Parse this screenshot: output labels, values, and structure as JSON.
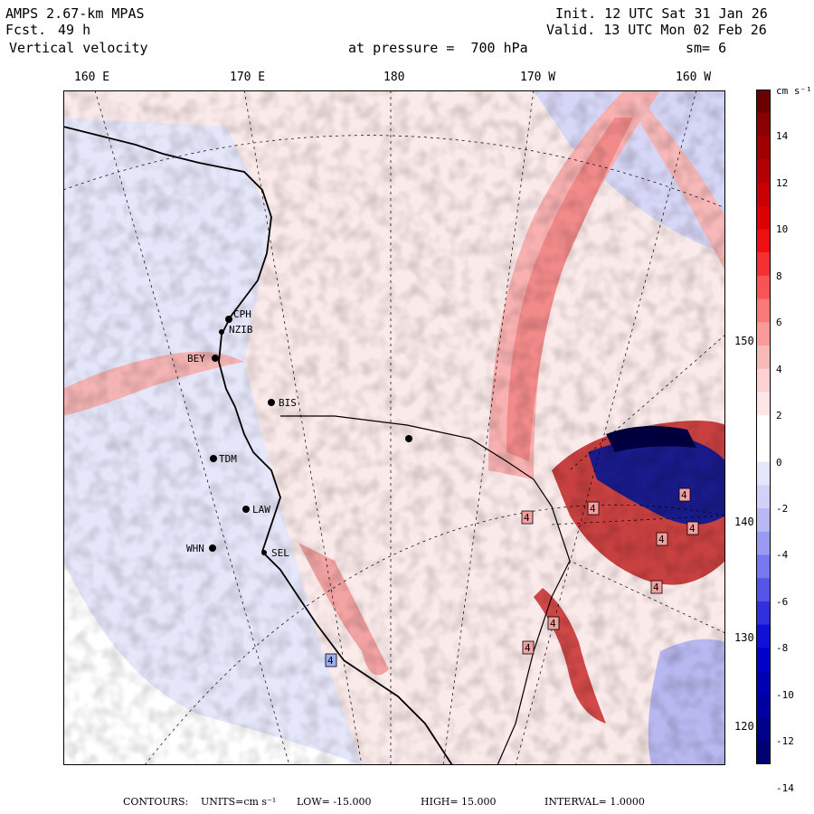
{
  "header": {
    "model": "AMPS 2.67-km MPAS",
    "fcst_label": "Fcst.",
    "fcst_value": "49 h",
    "field": "Vertical velocity",
    "init": "Init. 12 UTC Sat 31 Jan 26",
    "valid": "Valid. 13 UTC Mon 02 Feb 26",
    "pressure": "at pressure =  700 hPa",
    "smoothing": "sm= 6"
  },
  "longitude_ticks": [
    "160 E",
    "170 E",
    "180",
    "170 W",
    "160 W"
  ],
  "latitude_ticks": [
    "150 W",
    "140 W",
    "130 W",
    "120 W"
  ],
  "stations": [
    "CPH",
    "NZIB",
    "BEY",
    "BIS",
    "TDM",
    "LAW",
    "WHN",
    "SEL"
  ],
  "contour_markers": [
    "4",
    "4",
    "4",
    "4",
    "4",
    "4",
    "4",
    "4",
    "4"
  ],
  "colorbar": {
    "units": "cm s⁻¹",
    "labels": [
      "14",
      "12",
      "10",
      "8",
      "6",
      "4",
      "2",
      "0",
      "-2",
      "-4",
      "-6",
      "-8",
      "-10",
      "-12",
      "-14"
    ],
    "colors": [
      "#6b0000",
      "#8b0000",
      "#a00000",
      "#b40000",
      "#c80000",
      "#dc0000",
      "#ee1010",
      "#f43030",
      "#f75555",
      "#f97878",
      "#fa9a9a",
      "#fbb8b8",
      "#fcd2d2",
      "#fde6e6",
      "#ffffff",
      "#ffffff",
      "#e6e6fa",
      "#d2d2f8",
      "#b8b8f5",
      "#9a9af2",
      "#7878ee",
      "#5555e8",
      "#3030e0",
      "#1010d8",
      "#0000c8",
      "#0000b4",
      "#0000a0",
      "#00008b",
      "#000070"
    ]
  },
  "footer": {
    "contours_label": "CONTOURS:",
    "units_label": "UNITS=cm s⁻¹",
    "low_label": "LOW= -15.000",
    "high_label": "HIGH= 15.000",
    "interval_label": "INTERVAL= 1.0000"
  }
}
